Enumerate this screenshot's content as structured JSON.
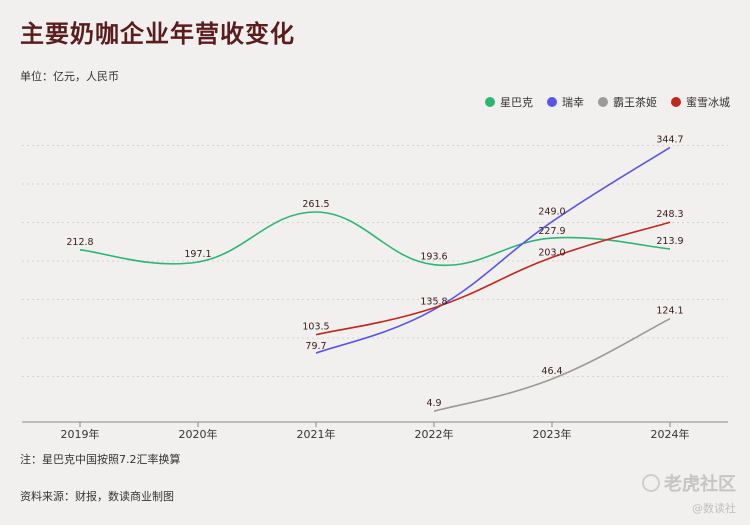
{
  "title": "主要奶咖企业年营收变化",
  "unit": "单位：亿元，人民币",
  "note": "注：星巴克中国按照7.2汇率换算",
  "source": "资料来源：财报，数读商业制图",
  "watermark": {
    "main": "老虎社区",
    "sub": "@数读社"
  },
  "chart_data": {
    "type": "line",
    "categories": [
      "2019年",
      "2020年",
      "2021年",
      "2022年",
      "2023年",
      "2024年"
    ],
    "series": [
      {
        "name": "星巴克",
        "color": "#2bb673",
        "values": [
          212.8,
          197.1,
          261.5,
          193.6,
          227.9,
          213.9
        ]
      },
      {
        "name": "瑞幸",
        "color": "#5a55e6",
        "values": [
          null,
          null,
          79.7,
          135.8,
          249.0,
          344.7
        ]
      },
      {
        "name": "霸王茶姬",
        "color": "#9a9a9a",
        "values": [
          null,
          null,
          null,
          4.9,
          46.4,
          124.1
        ]
      },
      {
        "name": "蜜雪冰城",
        "color": "#c0281c",
        "values": [
          null,
          null,
          103.5,
          null,
          203.0,
          248.3
        ]
      }
    ],
    "data_labels": [
      {
        "series": 0,
        "index": 0,
        "text": "212.8"
      },
      {
        "series": 0,
        "index": 1,
        "text": "197.1"
      },
      {
        "series": 0,
        "index": 2,
        "text": "261.5"
      },
      {
        "series": 0,
        "index": 3,
        "text": "193.6"
      },
      {
        "series": 0,
        "index": 4,
        "text": "227.9"
      },
      {
        "series": 0,
        "index": 5,
        "text": "213.9"
      },
      {
        "series": 1,
        "index": 2,
        "text": "79.7"
      },
      {
        "series": 1,
        "index": 3,
        "text": "135.8"
      },
      {
        "series": 1,
        "index": 4,
        "text": "249.0"
      },
      {
        "series": 1,
        "index": 5,
        "text": "344.7"
      },
      {
        "series": 2,
        "index": 3,
        "text": "4.9"
      },
      {
        "series": 2,
        "index": 4,
        "text": "46.4"
      },
      {
        "series": 2,
        "index": 5,
        "text": "124.1"
      },
      {
        "series": 3,
        "index": 2,
        "text": "103.5"
      },
      {
        "series": 3,
        "index": 4,
        "text": "203.0"
      },
      {
        "series": 3,
        "index": 5,
        "text": "248.3"
      }
    ],
    "ylim": [
      0,
      380
    ],
    "grid": true,
    "legend_position": "top-right"
  }
}
